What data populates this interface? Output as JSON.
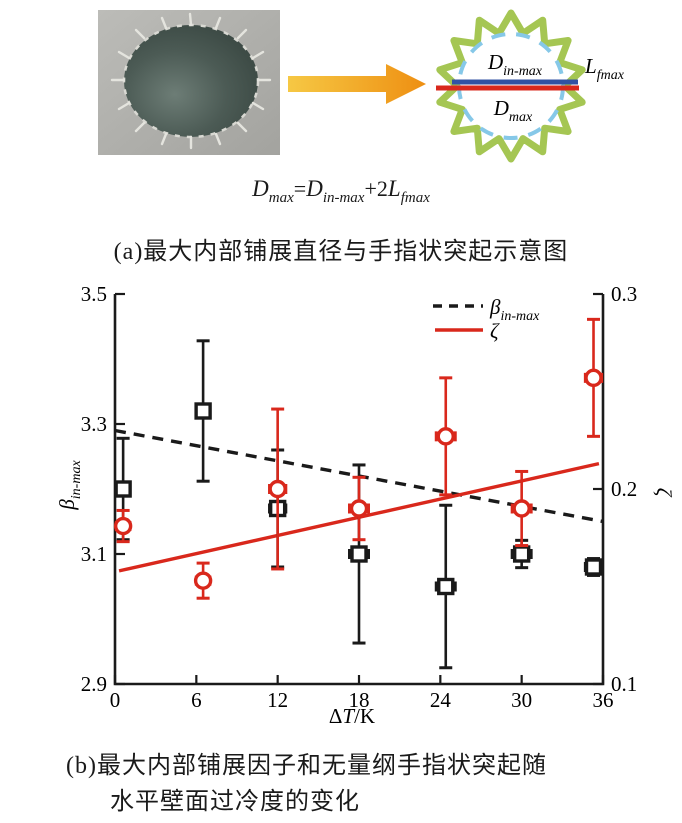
{
  "photo": {
    "description": "grayscale photo of an impacted droplet with finger-like splashes"
  },
  "arrow": {
    "colors": [
      "#f6c844",
      "#ee8f12"
    ]
  },
  "schematic": {
    "gear_color": "#a5c653",
    "dashed_circle_color": "#86c8e8",
    "inner_line_color": "#3152a3",
    "outer_line_color": "#d9281c",
    "d_in_base": "D",
    "d_in_sub": "in-max",
    "l_base": "L",
    "l_sub": "fmax",
    "d_base": "D",
    "d_sub": "max"
  },
  "equation": {
    "p1": "D",
    "s1": "max",
    "p2": "=",
    "p3": "D",
    "s2": "in-max",
    "p4": "+2",
    "p5": "L",
    "s3": "fmax"
  },
  "captions": {
    "a": "(a)最大内部铺展直径与手指状突起示意图",
    "b_line1": "(b)最大内部铺展因子和无量纲手指状突起随",
    "b_line2": "水平壁面过冷度的变化"
  },
  "chart_data": {
    "type": "scatter",
    "grid": false,
    "legend_position": "top-right-inside",
    "x_axis": {
      "label_parts": [
        "Δ",
        "T",
        "/K"
      ],
      "ticks": [
        0,
        6,
        12,
        18,
        24,
        30,
        36
      ],
      "range": [
        0,
        36
      ]
    },
    "y_left": {
      "label_base": "β",
      "label_sub": "in-max",
      "ticks": [
        2.9,
        3.1,
        3.3,
        3.5
      ],
      "range": [
        2.9,
        3.5
      ]
    },
    "y_right": {
      "label": "ζ",
      "ticks": [
        0.1,
        0.2,
        0.3
      ],
      "range": [
        0.1,
        0.3
      ]
    },
    "legend": [
      {
        "base": "β",
        "sub": "in-max",
        "style": "dashed",
        "color": "#1a1a1a"
      },
      {
        "base": "ζ",
        "sub": "",
        "style": "solid",
        "color": "#d9281c"
      }
    ],
    "series": [
      {
        "name": "beta_in_max",
        "axis": "left",
        "marker": "square",
        "color": "#1a1a1a",
        "x": [
          0.6,
          6.5,
          12,
          18,
          24.4,
          30,
          35.3
        ],
        "y": [
          3.2,
          3.32,
          3.17,
          3.1,
          3.05,
          3.1,
          3.08
        ],
        "yerr": [
          0.078,
          0.108,
          0.09,
          0.137,
          0.125,
          0.021,
          0.013
        ],
        "xerr": [
          0,
          0,
          0.6,
          0.7,
          0.7,
          0.7,
          0.6
        ]
      },
      {
        "name": "zeta",
        "axis": "right",
        "marker": "circle",
        "color": "#d9281c",
        "x": [
          0.6,
          6.5,
          12,
          18,
          24.4,
          30,
          35.3
        ],
        "y": [
          0.181,
          0.153,
          0.2,
          0.19,
          0.227,
          0.19,
          0.257
        ],
        "yerr": [
          0.008,
          0.009,
          0.041,
          0.016,
          0.03,
          0.019,
          0.03
        ],
        "xerr": [
          0.5,
          0.5,
          0.6,
          0.7,
          0.7,
          0.7,
          0.6
        ]
      }
    ],
    "trends": [
      {
        "series": "beta_in_max",
        "axis": "left",
        "style": "dashed",
        "color": "#1a1a1a",
        "x": [
          0,
          36
        ],
        "y": [
          3.29,
          3.15
        ]
      },
      {
        "series": "zeta",
        "axis": "right",
        "style": "solid",
        "color": "#d9281c",
        "x": [
          0.3,
          35.7
        ],
        "y": [
          0.158,
          0.213
        ]
      }
    ]
  }
}
